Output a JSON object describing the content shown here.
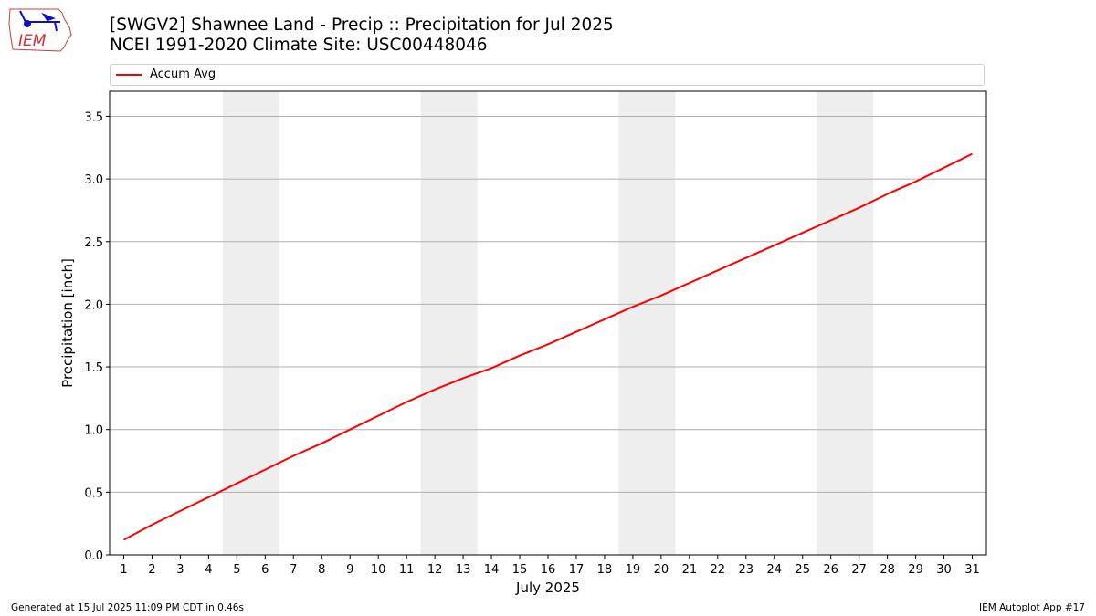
{
  "header": {
    "title_line1": "[SWGV2] Shawnee Land - Precip :: Precipitation for Jul 2025",
    "title_line2": "NCEI 1991-2020 Climate Site: USC00448046",
    "logo_text": "IEM"
  },
  "footer": {
    "generated": "Generated at 15 Jul 2025 11:09 PM CDT in 0.46s",
    "app": "IEM Autoplot App #17"
  },
  "colors": {
    "series": "#ff0000",
    "weekend_band": "#eeeeee",
    "grid": "#b0b0b0"
  },
  "chart_data": {
    "type": "line",
    "xlabel": "July 2025",
    "ylabel": "Precipitation [inch]",
    "xlim": [
      0.5,
      31.5
    ],
    "ylim": [
      0,
      3.7
    ],
    "yticks": [
      0.0,
      0.5,
      1.0,
      1.5,
      2.0,
      2.5,
      3.0,
      3.5
    ],
    "ytick_labels": [
      "0.0",
      "0.5",
      "1.0",
      "1.5",
      "2.0",
      "2.5",
      "3.0",
      "3.5"
    ],
    "x": [
      1,
      2,
      3,
      4,
      5,
      6,
      7,
      8,
      9,
      10,
      11,
      12,
      13,
      14,
      15,
      16,
      17,
      18,
      19,
      20,
      21,
      22,
      23,
      24,
      25,
      26,
      27,
      28,
      29,
      30,
      31
    ],
    "xtick_labels": [
      "1",
      "2",
      "3",
      "4",
      "5",
      "6",
      "7",
      "8",
      "9",
      "10",
      "11",
      "12",
      "13",
      "14",
      "15",
      "16",
      "17",
      "18",
      "19",
      "20",
      "21",
      "22",
      "23",
      "24",
      "25",
      "26",
      "27",
      "28",
      "29",
      "30",
      "31"
    ],
    "weekend_bands": [
      [
        4.5,
        6.5
      ],
      [
        11.5,
        13.5
      ],
      [
        18.5,
        20.5
      ],
      [
        25.5,
        27.5
      ]
    ],
    "grid": "y",
    "legend": "top",
    "series": [
      {
        "name": "Accum Avg",
        "values": [
          0.12,
          0.24,
          0.35,
          0.46,
          0.57,
          0.68,
          0.79,
          0.89,
          1.0,
          1.11,
          1.22,
          1.32,
          1.41,
          1.49,
          1.59,
          1.68,
          1.78,
          1.88,
          1.98,
          2.07,
          2.17,
          2.27,
          2.37,
          2.47,
          2.57,
          2.67,
          2.77,
          2.88,
          2.98,
          3.09,
          3.2
        ]
      }
    ]
  }
}
